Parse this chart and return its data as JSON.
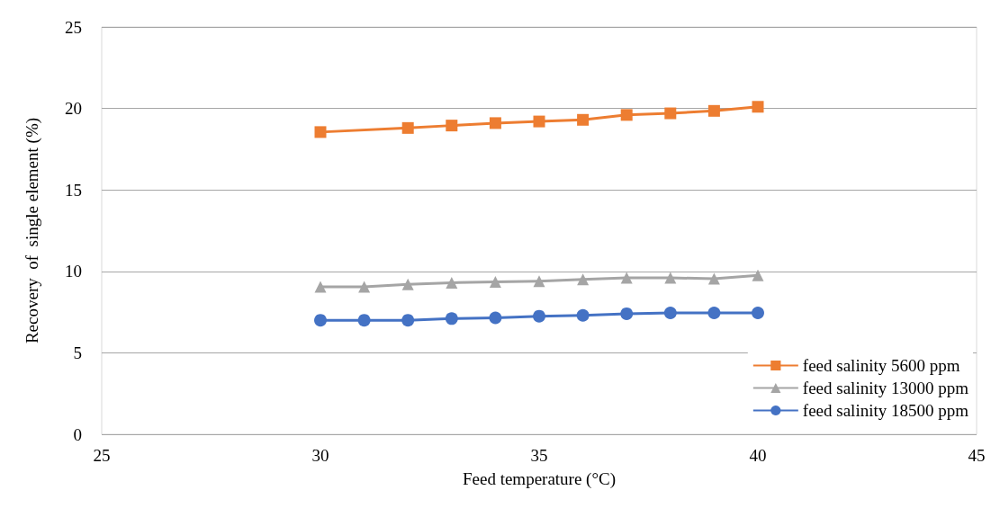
{
  "chart_data": {
    "type": "line",
    "xlabel": "Feed temperature (°C)",
    "ylabel": "Recovery  of  single element (%)",
    "xlim": [
      25,
      45
    ],
    "xticks": [
      25,
      30,
      35,
      40,
      45
    ],
    "ylim": [
      0,
      25
    ],
    "yticks": [
      0,
      5,
      10,
      15,
      20,
      25
    ],
    "grid": "y",
    "legend": "bottom right",
    "series": [
      {
        "name": "feed salinity 5600 ppm",
        "color": "#ed7d31",
        "marker": "square",
        "x": [
          30,
          32,
          33,
          34,
          35,
          36,
          37,
          38,
          39,
          40
        ],
        "values": [
          18.55,
          18.8,
          18.95,
          19.1,
          19.2,
          19.3,
          19.6,
          19.7,
          19.85,
          20.1
        ]
      },
      {
        "name": "feed salinity 13000 ppm",
        "color": "#a5a5a5",
        "marker": "triangle",
        "x": [
          30,
          31,
          32,
          33,
          34,
          35,
          36,
          37,
          38,
          39,
          40
        ],
        "values": [
          9.05,
          9.05,
          9.2,
          9.3,
          9.35,
          9.4,
          9.5,
          9.6,
          9.6,
          9.55,
          9.75
        ]
      },
      {
        "name": "feed salinity 18500 ppm",
        "color": "#4472c4",
        "marker": "circle",
        "x": [
          30,
          31,
          32,
          33,
          34,
          35,
          36,
          37,
          38,
          39,
          40
        ],
        "values": [
          7.0,
          7.0,
          7.0,
          7.1,
          7.15,
          7.25,
          7.3,
          7.4,
          7.45,
          7.45,
          7.45
        ]
      }
    ]
  }
}
